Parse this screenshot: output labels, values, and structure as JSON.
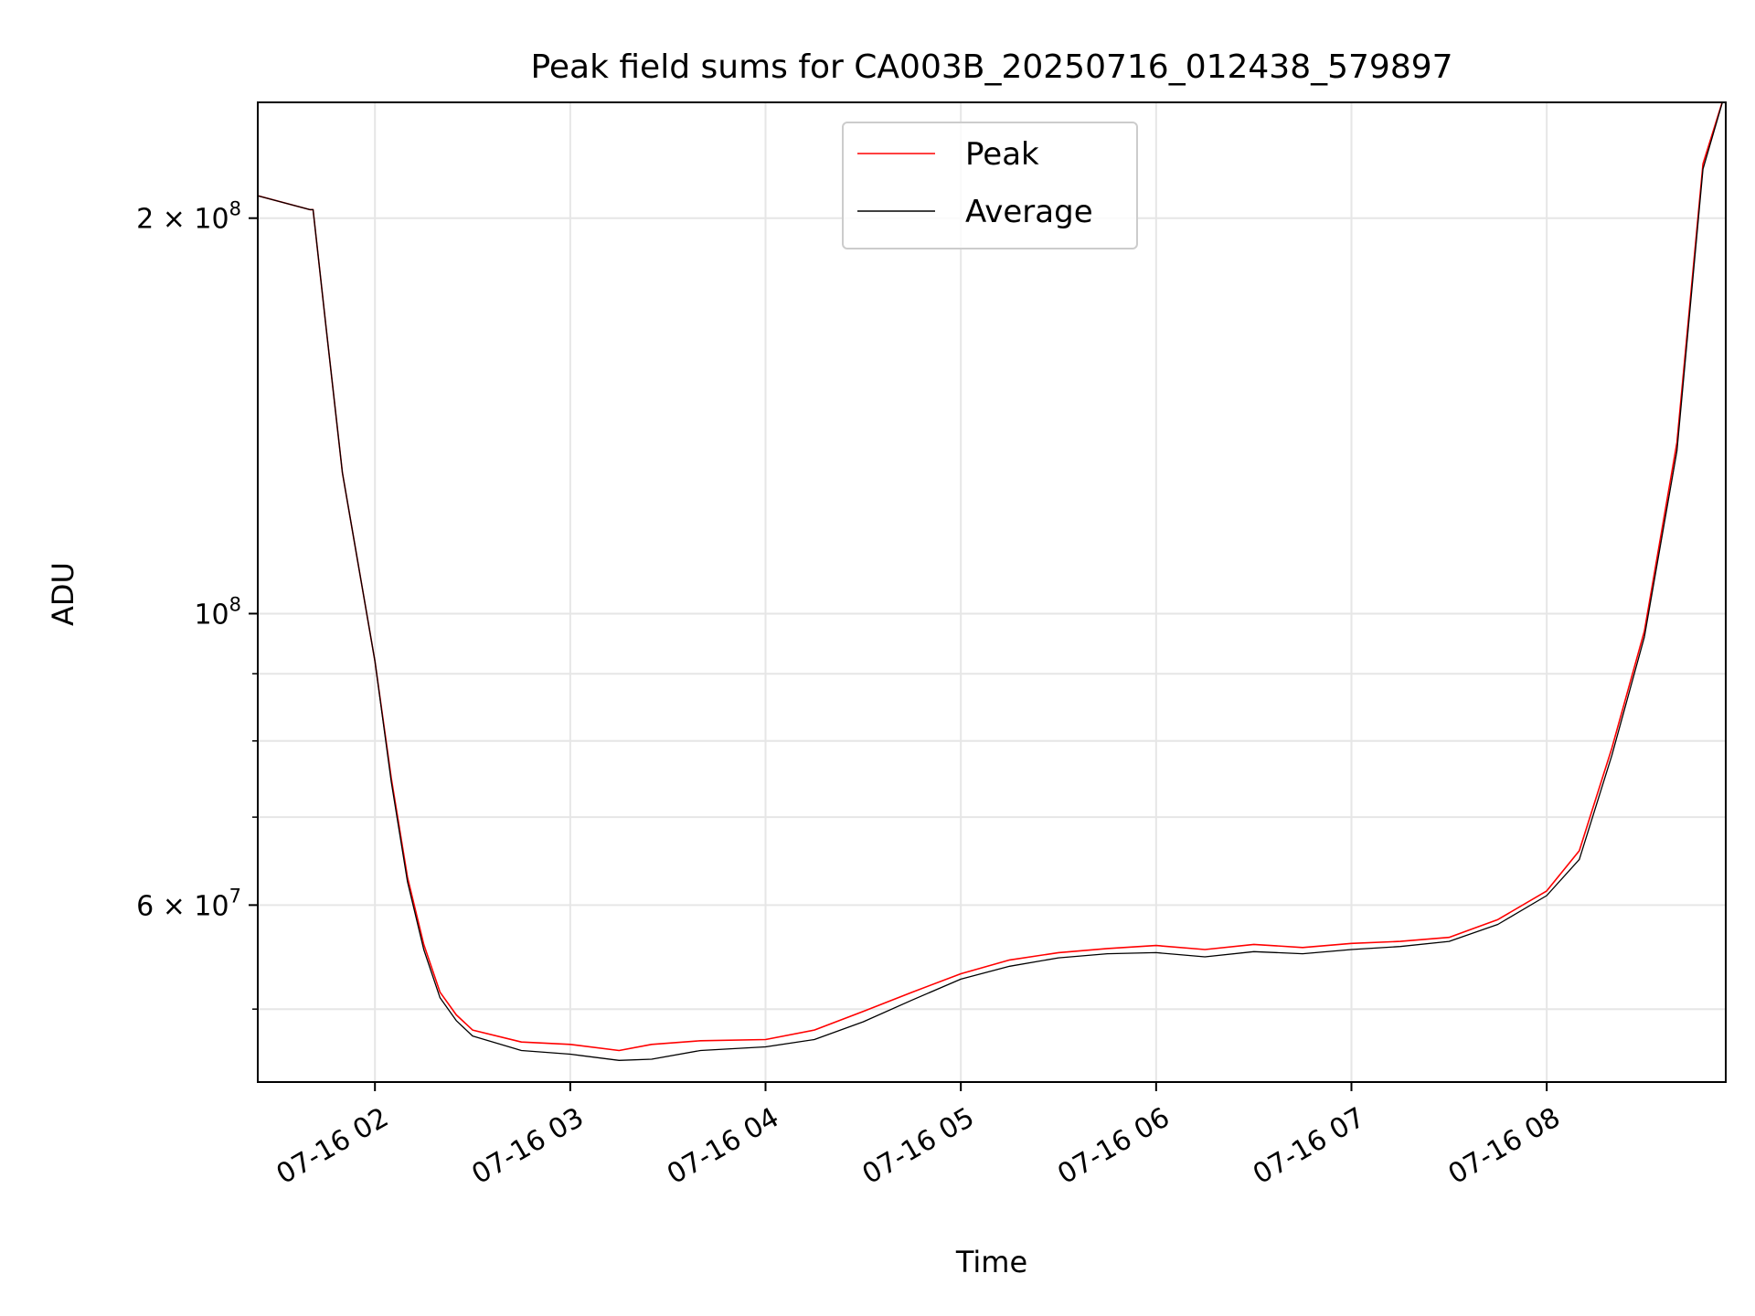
{
  "chart_data": {
    "type": "line",
    "title": "Peak field sums for CA003B_20250716_012438_579897",
    "xlabel": "Time",
    "ylabel": "ADU",
    "yscale": "log",
    "ylim": [
      44000000,
      245000000
    ],
    "xlim": [
      "07-16 01:24",
      "07-16 08:55"
    ],
    "grid": true,
    "legend_position": "upper center",
    "x_ticks": [
      "07-16 02",
      "07-16 03",
      "07-16 04",
      "07-16 05",
      "07-16 06",
      "07-16 07",
      "07-16 08"
    ],
    "y_ticks": [
      {
        "value": 200000000,
        "label": "2 × 10⁸",
        "mantissa": "2",
        "exp": "8"
      },
      {
        "value": 100000000,
        "label": "10⁸",
        "mantissa": "",
        "exp": "8"
      },
      {
        "value": 60000000,
        "label": "6 × 10⁷",
        "mantissa": "6",
        "exp": "7"
      }
    ],
    "y_minor_ticks": [
      50000000,
      70000000,
      80000000,
      90000000
    ],
    "x": [
      "01:24",
      "01:40",
      "01:41",
      "01:45",
      "01:50",
      "02:00",
      "02:05",
      "02:10",
      "02:15",
      "02:20",
      "02:25",
      "02:30",
      "02:45",
      "03:00",
      "03:15",
      "03:25",
      "03:40",
      "04:00",
      "04:15",
      "04:30",
      "04:45",
      "05:00",
      "05:15",
      "05:30",
      "05:45",
      "06:00",
      "06:15",
      "06:30",
      "06:45",
      "07:00",
      "07:15",
      "07:30",
      "07:45",
      "08:00",
      "08:10",
      "08:20",
      "08:30",
      "08:40",
      "08:48",
      "08:55"
    ],
    "series": [
      {
        "name": "Peak",
        "color": "#ff0000",
        "values": [
          208000000,
          203000000,
          203000000,
          165000000,
          128000000,
          92000000,
          75000000,
          63000000,
          56000000,
          51500000,
          49500000,
          48200000,
          47200000,
          47000000,
          46500000,
          47000000,
          47300000,
          47400000,
          48200000,
          49800000,
          51500000,
          53200000,
          54500000,
          55200000,
          55600000,
          55900000,
          55500000,
          56000000,
          55700000,
          56100000,
          56300000,
          56700000,
          58500000,
          61500000,
          66000000,
          79000000,
          97000000,
          135000000,
          220000000,
          250000000
        ]
      },
      {
        "name": "Average",
        "color": "#000000",
        "values": [
          208000000,
          203000000,
          203000000,
          165000000,
          128000000,
          92000000,
          74500000,
          62500000,
          55500000,
          51000000,
          49000000,
          47700000,
          46500000,
          46200000,
          45700000,
          45800000,
          46500000,
          46800000,
          47400000,
          48900000,
          50800000,
          52700000,
          53900000,
          54700000,
          55100000,
          55200000,
          54800000,
          55300000,
          55100000,
          55500000,
          55800000,
          56300000,
          58000000,
          61000000,
          65000000,
          78000000,
          96000000,
          133000000,
          218000000,
          250000000
        ]
      }
    ]
  }
}
